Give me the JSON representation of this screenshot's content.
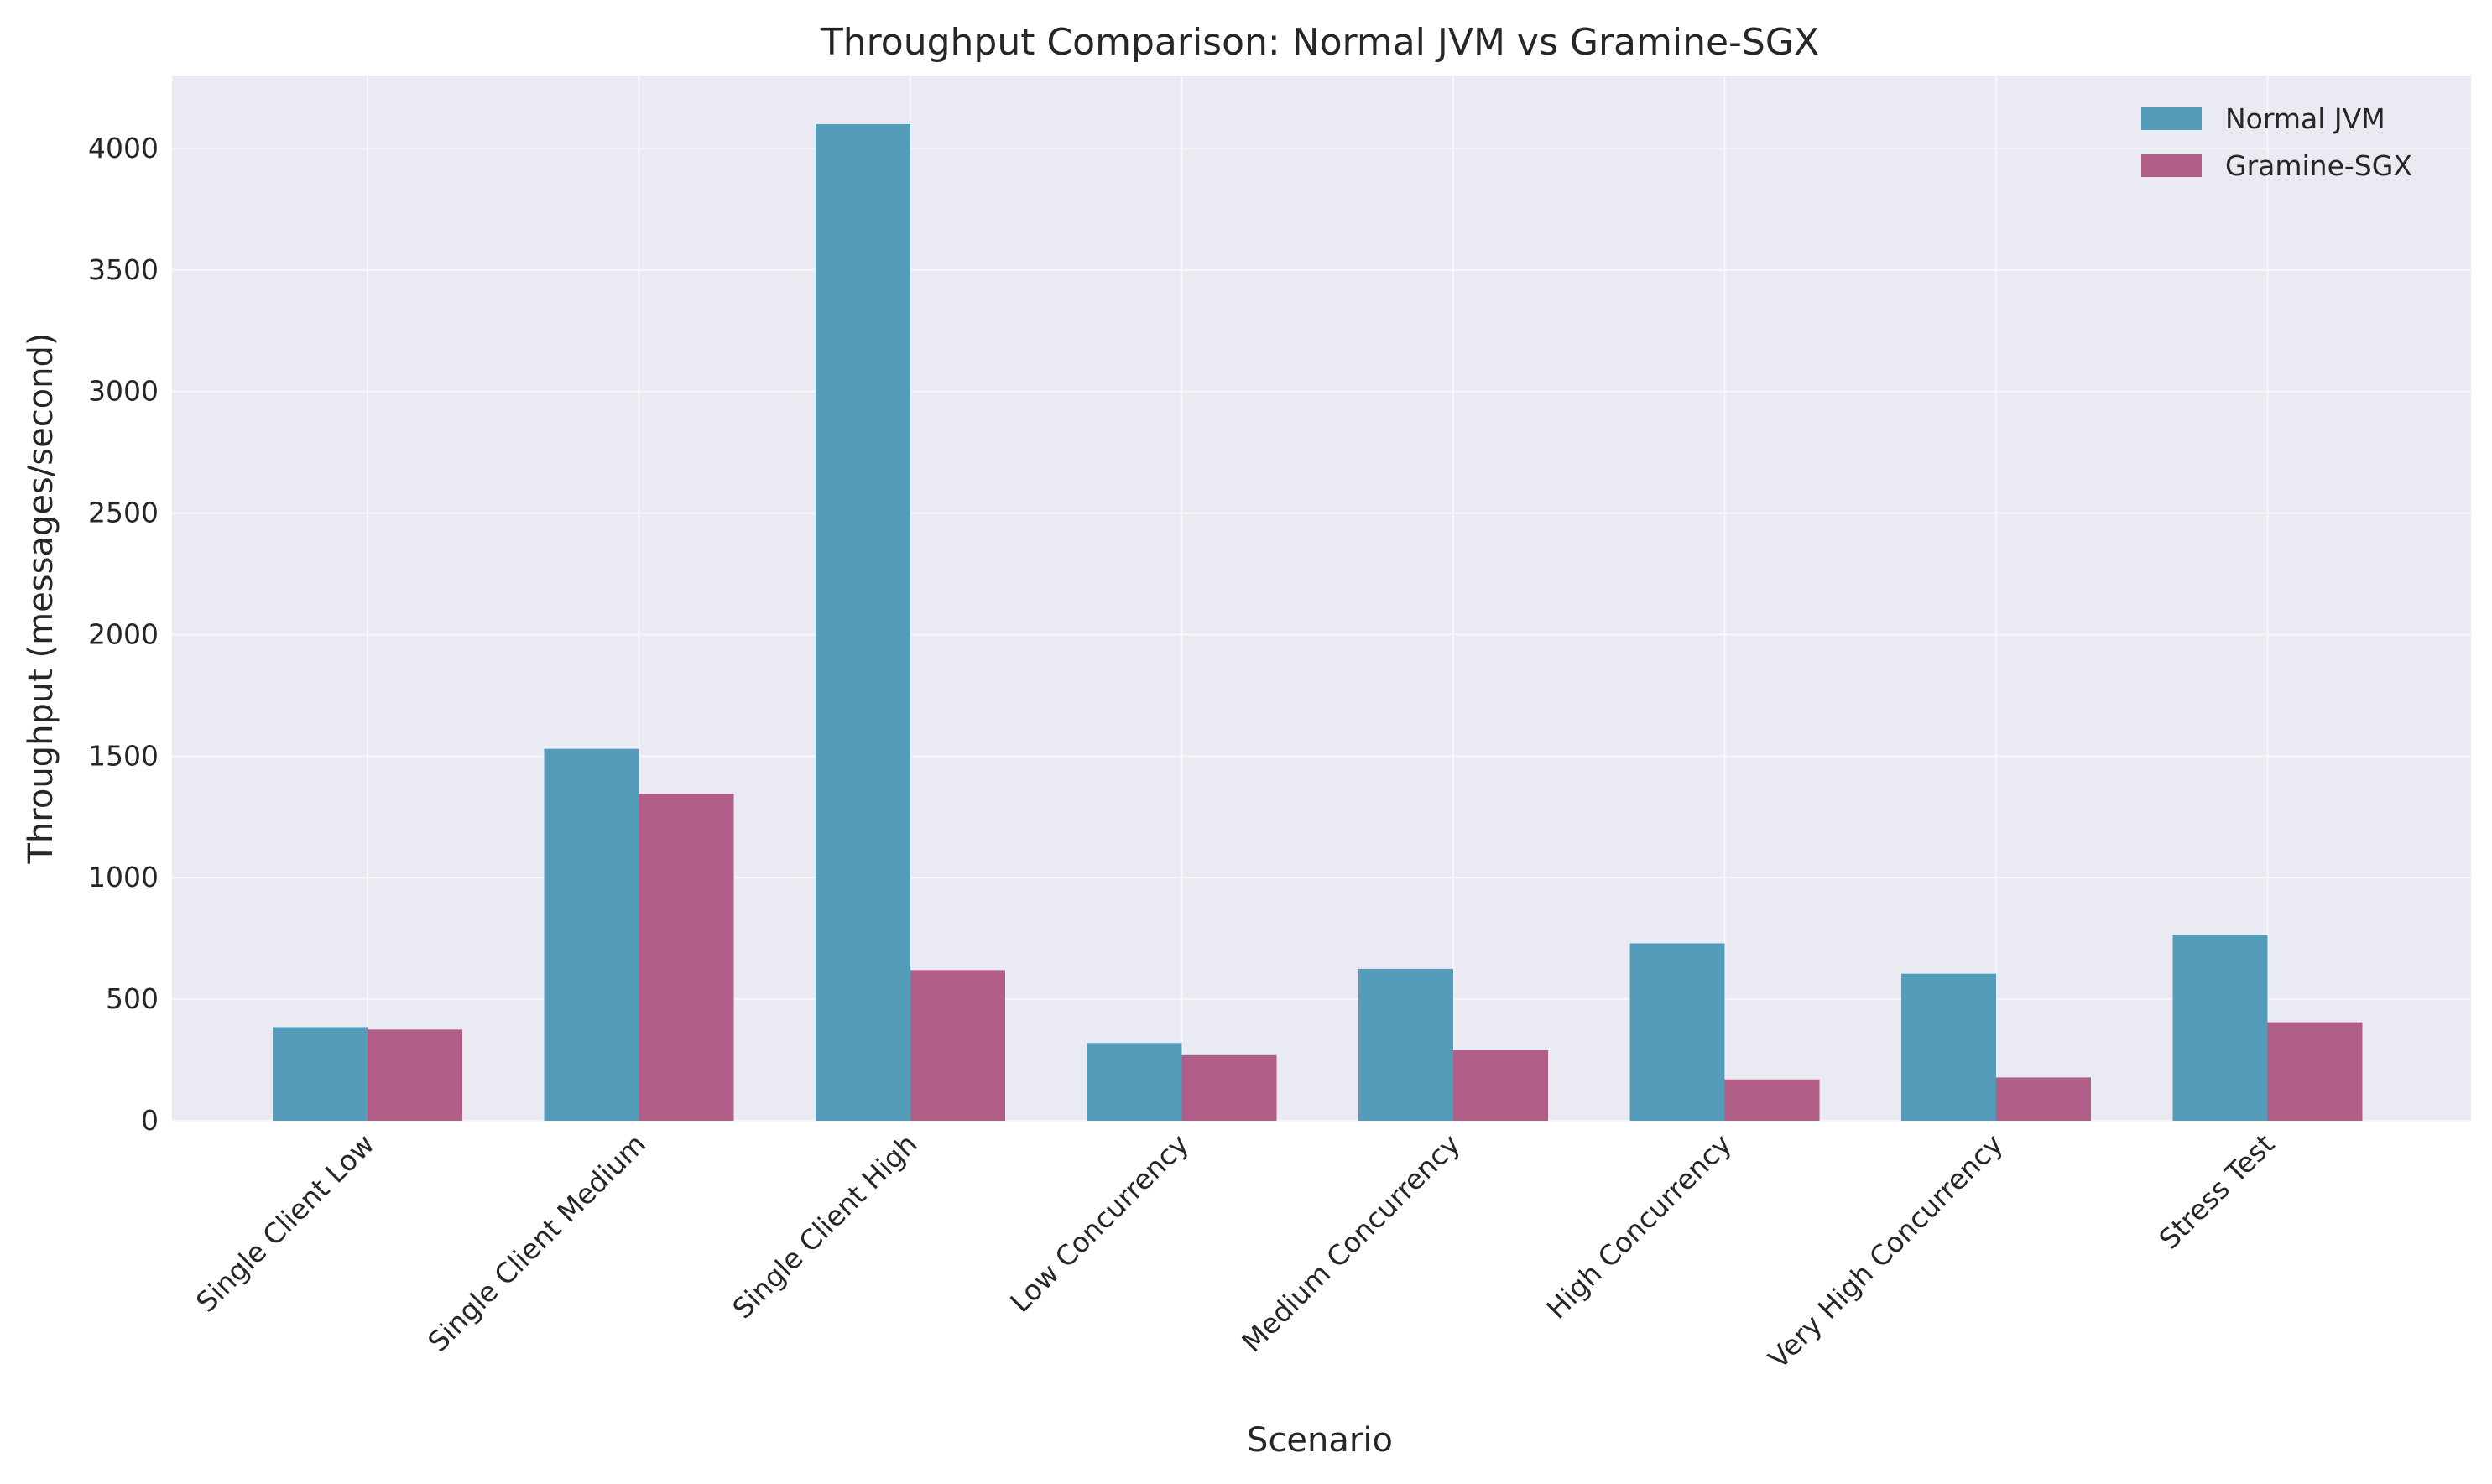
{
  "chart_data": {
    "type": "bar",
    "title": "Throughput Comparison: Normal JVM vs Gramine-SGX",
    "xlabel": "Scenario",
    "ylabel": "Throughput (messages/second)",
    "categories": [
      "Single Client Low",
      "Single Client Medium",
      "Single Client High",
      "Low Concurrency",
      "Medium Concurrency",
      "High Concurrency",
      "Very High Concurrency",
      "Stress Test"
    ],
    "series": [
      {
        "name": "Normal JVM",
        "color": "#559cba",
        "values": [
          385,
          1530,
          4100,
          320,
          625,
          730,
          605,
          765
        ]
      },
      {
        "name": "Gramine-SGX",
        "color": "#b05e88",
        "values": [
          375,
          1345,
          620,
          270,
          290,
          170,
          178,
          405
        ]
      }
    ],
    "ylim": [
      0,
      4300
    ],
    "yticks": [
      0,
      500,
      1000,
      1500,
      2000,
      2500,
      3000,
      3500,
      4000
    ],
    "grid": true,
    "legend_position": "top-right",
    "background_color": "#eaeaf2"
  }
}
